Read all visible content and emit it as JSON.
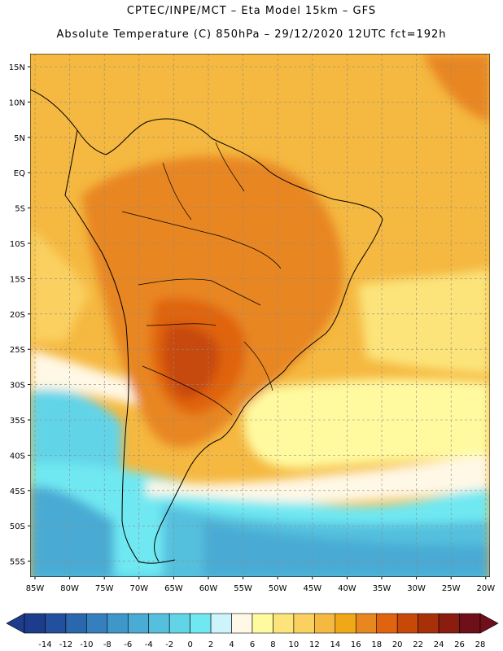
{
  "header": {
    "line1": "CPTEC/INPE/MCT –  Eta Model 15km – GFS",
    "line2": "Absolute Temperature (C) 850hPa – 29/12/2020 12UTC fct=192h"
  },
  "map": {
    "lat_labels": [
      "15N",
      "10N",
      "5N",
      "EQ",
      "5S",
      "10S",
      "15S",
      "20S",
      "25S",
      "30S",
      "35S",
      "40S",
      "45S",
      "50S",
      "55S"
    ],
    "lon_labels": [
      "85W",
      "80W",
      "75W",
      "70W",
      "65W",
      "60W",
      "55W",
      "50W",
      "45W",
      "40W",
      "35W",
      "30W",
      "25W",
      "20W"
    ],
    "grid": "dashed"
  },
  "colorbar": {
    "labels": [
      "-14",
      "-12",
      "-10",
      "-8",
      "-6",
      "-4",
      "-2",
      "0",
      "2",
      "4",
      "6",
      "8",
      "10",
      "12",
      "14",
      "16",
      "18",
      "20",
      "22",
      "24",
      "26",
      "28"
    ],
    "colors": [
      "#1e3c8c",
      "#23509e",
      "#2a68ae",
      "#3580bc",
      "#3f96c8",
      "#4aabd4",
      "#55c0de",
      "#62d4e8",
      "#6fe8f2",
      "#cdf4fa",
      "#fff8e6",
      "#fffaa0",
      "#fce47a",
      "#fad060",
      "#f5b840",
      "#f0a818",
      "#e88620",
      "#e06410",
      "#c84808",
      "#a83008",
      "#8a1c10",
      "#6e0f1a"
    ]
  }
}
